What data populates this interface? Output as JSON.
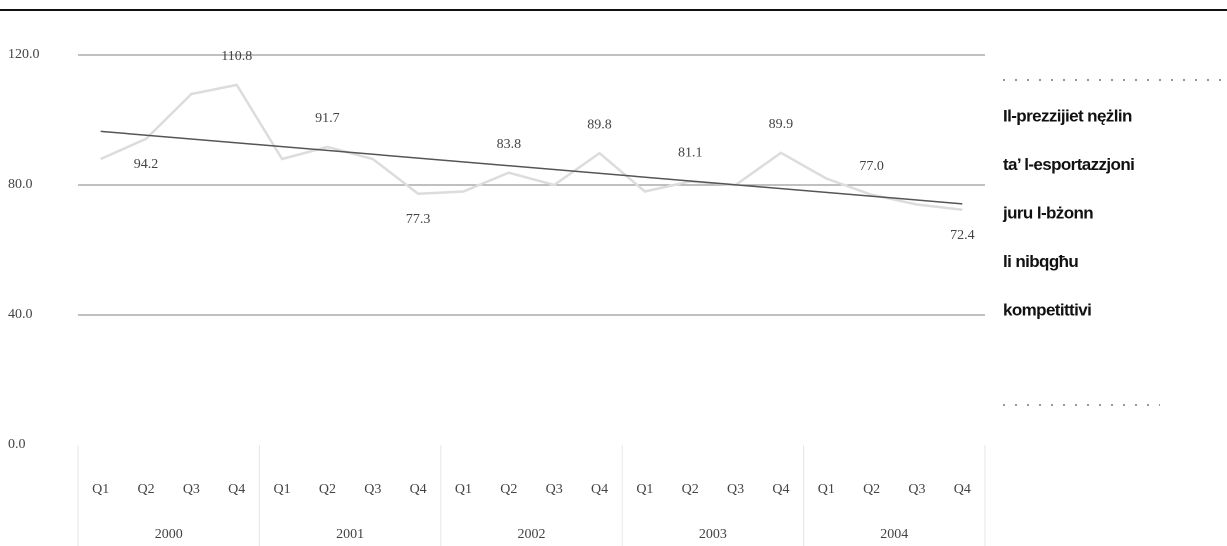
{
  "chart_data": {
    "type": "line",
    "categories": [
      "Q1",
      "Q2",
      "Q3",
      "Q4",
      "Q1",
      "Q2",
      "Q3",
      "Q4",
      "Q1",
      "Q2",
      "Q3",
      "Q4",
      "Q1",
      "Q2",
      "Q3",
      "Q4",
      "Q1",
      "Q2",
      "Q3",
      "Q4"
    ],
    "groups": [
      "2000",
      "2001",
      "2002",
      "2003",
      "2004"
    ],
    "series": [
      {
        "color": "#dcdcdc",
        "values": [
          88,
          94.2,
          108,
          110.8,
          88,
          91.7,
          88,
          77.3,
          78,
          83.8,
          80,
          89.8,
          78,
          81.1,
          80,
          89.9,
          82,
          77.0,
          74,
          72.4
        ],
        "value_labels": [
          null,
          "94.2",
          null,
          "110.8",
          null,
          "91.7",
          null,
          "77.3",
          null,
          "83.8",
          null,
          "89.8",
          null,
          "81.1",
          null,
          "89.9",
          null,
          "77.0",
          null,
          "72.4"
        ]
      }
    ],
    "trend": {
      "color": "#555555",
      "values": [
        96.5,
        74.2
      ]
    },
    "ylim": [
      0,
      120
    ],
    "yticks": [
      {
        "value": 0,
        "label": "0.0"
      },
      {
        "value": 40,
        "label": "40.0"
      },
      {
        "value": 80,
        "label": "80.0"
      },
      {
        "value": 120,
        "label": "120.0"
      }
    ],
    "grid": true
  },
  "sidebar": {
    "lines": [
      "Il-prezzijiet nężlin",
      "ta’ l-esportazzjoni",
      "juru l-bżonn",
      "li nibqgħu",
      "kompetittivi"
    ]
  }
}
